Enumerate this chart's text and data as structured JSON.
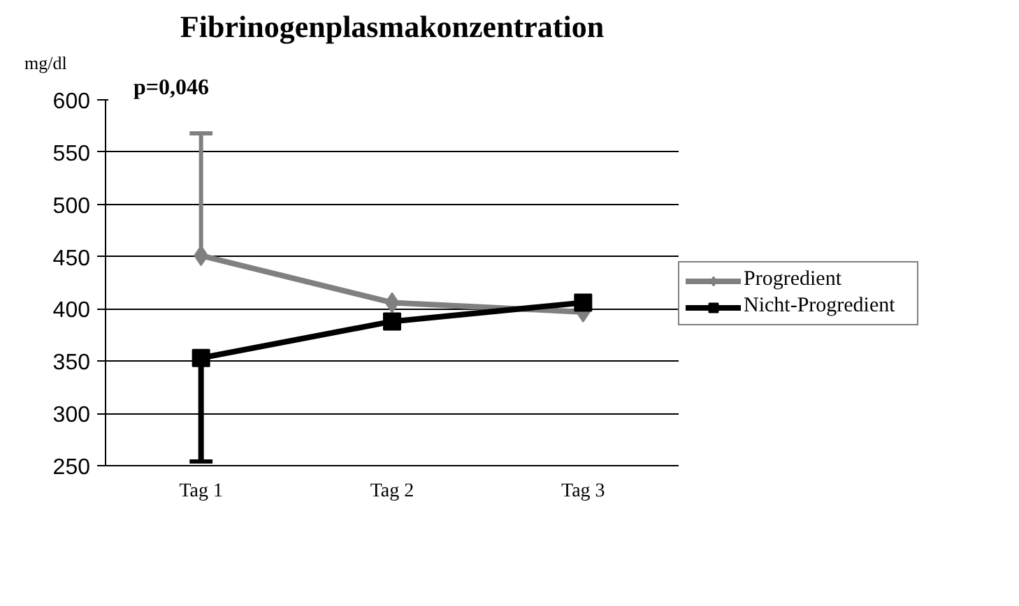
{
  "chart_data": {
    "type": "line",
    "title": "Fibrinogenplasmakonzentration",
    "ylabel": "mg/dl",
    "annotations": [
      "p=0,046"
    ],
    "categories": [
      "Tag 1",
      "Tag 2",
      "Tag 3"
    ],
    "series": [
      {
        "name": "Progredient",
        "color": "#808080",
        "values": [
          451,
          406,
          397
        ],
        "marker": "diamond",
        "errors": [
          [
            451,
            568
          ],
          null,
          null
        ]
      },
      {
        "name": "Nicht-Progredient",
        "color": "#000000",
        "values": [
          353,
          388,
          406
        ],
        "marker": "square",
        "errors": [
          [
            254,
            353
          ],
          null,
          null
        ]
      }
    ],
    "ylim": [
      250,
      600
    ],
    "yticks": [
      250,
      300,
      350,
      400,
      450,
      500,
      550,
      600
    ],
    "grid": "y",
    "legend": "right"
  }
}
